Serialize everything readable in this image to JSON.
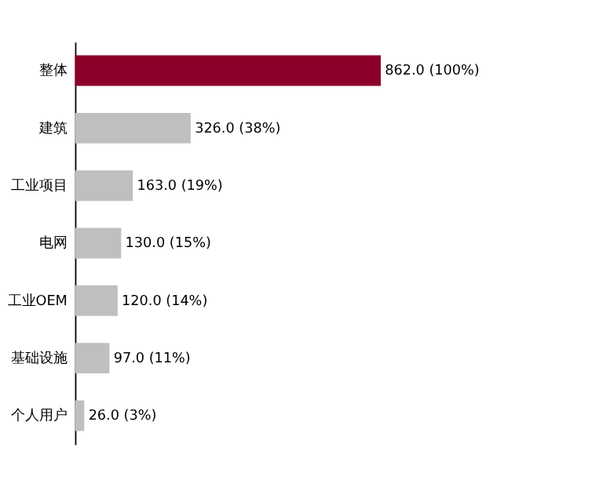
{
  "chart_data": {
    "type": "bar",
    "orientation": "horizontal",
    "categories": [
      "整体",
      "建筑",
      "工业项目",
      "电网",
      "工业OEM",
      "基础设施",
      "个人用户"
    ],
    "values": [
      862,
      326,
      163,
      130,
      120,
      97,
      26
    ],
    "colors": [
      "#8b0029",
      "#bfbfbf",
      "#bfbfbf",
      "#bfbfbf",
      "#bfbfbf",
      "#bfbfbf",
      "#bfbfbf"
    ],
    "value_labels": [
      "862.0 (100%)",
      "326.0 (38%)",
      "163.0 (19%)",
      "130.0 (15%)",
      "120.0 (14%)",
      "97.0 (11%)",
      "26.0 (3%)"
    ]
  }
}
